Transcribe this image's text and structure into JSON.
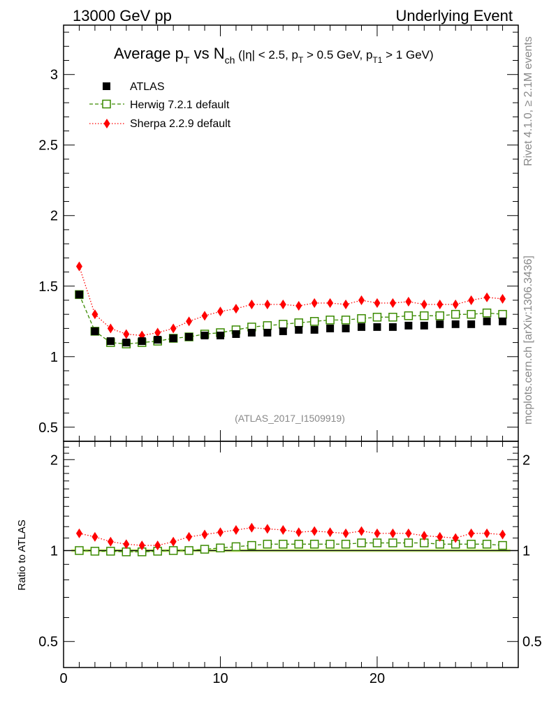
{
  "header": {
    "left": "13000 GeV pp",
    "right": "Underlying Event"
  },
  "title": {
    "main": "Average p",
    "sub_t": "T",
    "vs": " vs N",
    "sub_ch": "ch",
    "cond_open": " (|η| < 2.5, p",
    "cond_t1": "T",
    "cond_mid": " > 0.5 GeV, p",
    "cond_t2": "T1",
    "cond_close": " > 1 GeV)"
  },
  "side_labels": {
    "rivet": "Rivet 4.1.0, ≥ 2.1M events",
    "mcplots": "mcplots.cern.ch [arXiv:1306.3436]"
  },
  "analysis_id": "(ATLAS_2017_I1509919)",
  "ratio_ylabel": "Ratio to ATLAS",
  "colors": {
    "atlas": "#000000",
    "herwig": "#3a8a00",
    "sherpa": "#ff0000",
    "band": "#ccff66"
  },
  "chart_data": {
    "type": "scatter",
    "x": [
      1,
      2,
      3,
      4,
      5,
      6,
      7,
      8,
      9,
      10,
      11,
      12,
      13,
      14,
      15,
      16,
      17,
      18,
      19,
      20,
      21,
      22,
      23,
      24,
      25,
      26,
      27,
      28
    ],
    "main": {
      "xlim": [
        0,
        29
      ],
      "ylim": [
        0.4,
        3.35
      ],
      "yticks": [
        0.5,
        1,
        1.5,
        2,
        2.5,
        3
      ],
      "ytick_labels": [
        "0.5",
        "1",
        "1.5",
        "2",
        "2.5",
        "3"
      ],
      "series": [
        {
          "name": "ATLAS",
          "marker": "filled-square",
          "values": [
            1.44,
            1.18,
            1.11,
            1.1,
            1.11,
            1.12,
            1.13,
            1.14,
            1.15,
            1.15,
            1.16,
            1.17,
            1.17,
            1.18,
            1.19,
            1.19,
            1.2,
            1.2,
            1.21,
            1.21,
            1.21,
            1.22,
            1.22,
            1.23,
            1.23,
            1.23,
            1.25,
            1.25
          ]
        },
        {
          "name": "Herwig 7.2.1 default",
          "marker": "open-square",
          "values": [
            1.44,
            1.18,
            1.1,
            1.09,
            1.1,
            1.11,
            1.13,
            1.14,
            1.16,
            1.17,
            1.19,
            1.21,
            1.22,
            1.23,
            1.24,
            1.25,
            1.26,
            1.26,
            1.27,
            1.28,
            1.28,
            1.29,
            1.29,
            1.29,
            1.3,
            1.3,
            1.31,
            1.3
          ]
        },
        {
          "name": "Sherpa 2.2.9 default",
          "marker": "filled-diamond",
          "values": [
            1.64,
            1.3,
            1.2,
            1.16,
            1.15,
            1.17,
            1.2,
            1.25,
            1.29,
            1.32,
            1.34,
            1.37,
            1.37,
            1.37,
            1.36,
            1.38,
            1.38,
            1.37,
            1.4,
            1.38,
            1.38,
            1.39,
            1.37,
            1.37,
            1.37,
            1.4,
            1.42,
            1.41
          ]
        }
      ]
    },
    "ratio": {
      "ylabel": "Ratio to ATLAS",
      "ylim": [
        0.41,
        2.3
      ],
      "yticks": [
        0.5,
        1,
        2
      ],
      "ytick_labels": [
        "0.5",
        "1",
        "2"
      ],
      "series": [
        {
          "name": "Herwig 7.2.1 default",
          "values": [
            1.0,
            0.995,
            0.995,
            0.99,
            0.99,
            0.995,
            1.0,
            1.0,
            1.01,
            1.02,
            1.03,
            1.04,
            1.05,
            1.05,
            1.05,
            1.05,
            1.05,
            1.05,
            1.06,
            1.06,
            1.06,
            1.06,
            1.06,
            1.05,
            1.05,
            1.05,
            1.05,
            1.04
          ]
        },
        {
          "name": "Sherpa 2.2.9 default",
          "values": [
            1.14,
            1.11,
            1.07,
            1.05,
            1.04,
            1.04,
            1.07,
            1.11,
            1.13,
            1.15,
            1.17,
            1.19,
            1.18,
            1.17,
            1.15,
            1.16,
            1.15,
            1.14,
            1.16,
            1.14,
            1.14,
            1.14,
            1.12,
            1.11,
            1.1,
            1.14,
            1.14,
            1.13
          ]
        }
      ]
    },
    "xticks": [
      0,
      10,
      20
    ],
    "xtick_labels": [
      "0",
      "10",
      "20"
    ]
  }
}
